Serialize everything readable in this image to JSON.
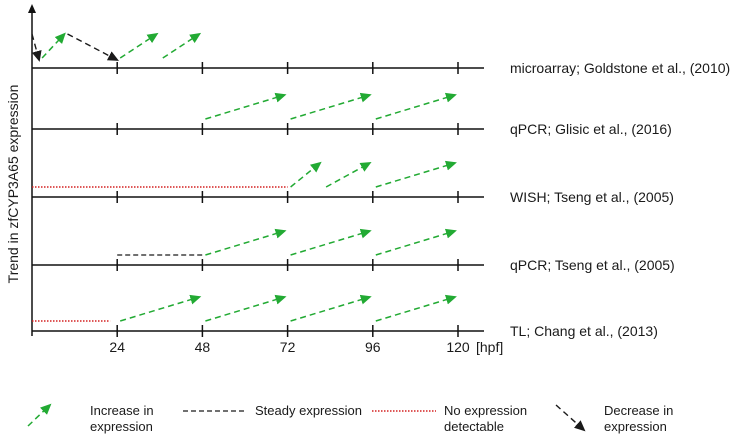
{
  "y_axis_label": "Trend in zfCYP3A65 expression",
  "x_axis": {
    "ticks": [
      "24",
      "48",
      "72",
      "96",
      "120"
    ],
    "unit": "[hpf]"
  },
  "studies": [
    {
      "label": "microarray; Goldstone et al., (2010)",
      "segments": [
        {
          "type": "decrease",
          "from_hpf": 0,
          "to_hpf": 2,
          "trend": "down"
        },
        {
          "type": "increase",
          "from_hpf": 2,
          "to_hpf": 10,
          "trend": "up"
        },
        {
          "type": "decrease",
          "from_hpf": 10,
          "to_hpf": 24,
          "trend": "down"
        },
        {
          "type": "increase",
          "from_hpf": 24,
          "to_hpf": 36,
          "trend": "up"
        },
        {
          "type": "increase",
          "from_hpf": 36,
          "to_hpf": 48,
          "trend": "up"
        }
      ]
    },
    {
      "label": "qPCR; Glisic et al., (2016)",
      "segments": [
        {
          "type": "increase",
          "from_hpf": 48,
          "to_hpf": 72,
          "trend": "up"
        },
        {
          "type": "increase",
          "from_hpf": 72,
          "to_hpf": 96,
          "trend": "up"
        },
        {
          "type": "increase",
          "from_hpf": 96,
          "to_hpf": 120,
          "trend": "up"
        }
      ]
    },
    {
      "label": "WISH; Tseng et al., (2005)",
      "segments": [
        {
          "type": "none",
          "from_hpf": 0,
          "to_hpf": 72,
          "trend": "flat"
        },
        {
          "type": "increase",
          "from_hpf": 72,
          "to_hpf": 82,
          "trend": "up"
        },
        {
          "type": "increase",
          "from_hpf": 82,
          "to_hpf": 96,
          "trend": "up"
        },
        {
          "type": "increase",
          "from_hpf": 96,
          "to_hpf": 120,
          "trend": "up"
        }
      ]
    },
    {
      "label": "qPCR; Tseng et al., (2005)",
      "segments": [
        {
          "type": "steady",
          "from_hpf": 24,
          "to_hpf": 48,
          "trend": "flat"
        },
        {
          "type": "increase",
          "from_hpf": 48,
          "to_hpf": 72,
          "trend": "up"
        },
        {
          "type": "increase",
          "from_hpf": 72,
          "to_hpf": 96,
          "trend": "up"
        },
        {
          "type": "increase",
          "from_hpf": 96,
          "to_hpf": 120,
          "trend": "up"
        }
      ]
    },
    {
      "label": "TL; Chang et al., (2013)",
      "segments": [
        {
          "type": "none",
          "from_hpf": 0,
          "to_hpf": 22,
          "trend": "flat"
        },
        {
          "type": "increase",
          "from_hpf": 24,
          "to_hpf": 48,
          "trend": "up"
        },
        {
          "type": "increase",
          "from_hpf": 48,
          "to_hpf": 72,
          "trend": "up"
        },
        {
          "type": "increase",
          "from_hpf": 72,
          "to_hpf": 96,
          "trend": "up"
        },
        {
          "type": "increase",
          "from_hpf": 96,
          "to_hpf": 120,
          "trend": "up"
        }
      ]
    }
  ],
  "legend": [
    {
      "type": "increase",
      "label_line1": "Increase in",
      "label_line2": "expression"
    },
    {
      "type": "steady",
      "label_line1": "Steady expression",
      "label_line2": ""
    },
    {
      "type": "none",
      "label_line1": "No expression",
      "label_line2": "detectable"
    },
    {
      "type": "decrease",
      "label_line1": "Decrease in",
      "label_line2": "expression"
    }
  ],
  "colors": {
    "increase": "#22aa33",
    "steady": "#1a1a1a",
    "none": "#d42020",
    "decrease": "#1a1a1a",
    "axis": "#111111"
  }
}
